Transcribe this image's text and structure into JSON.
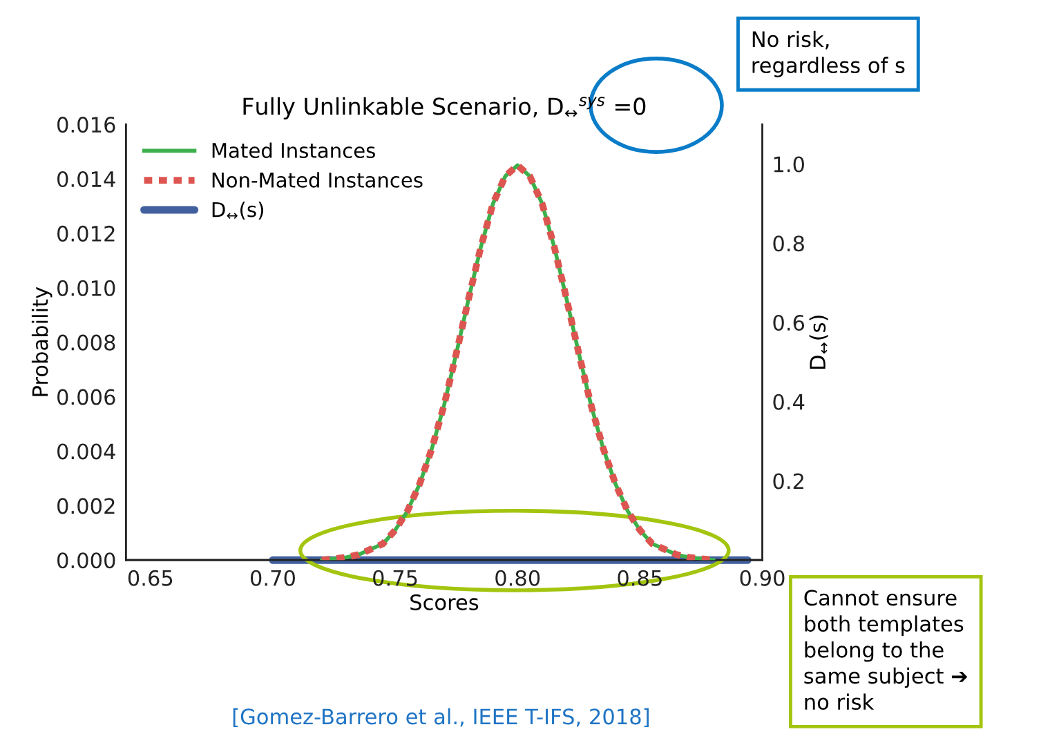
{
  "chart_data": {
    "type": "line",
    "title": "Fully Unlinkable Scenario, D$_{↔}$$^{sys}$ =0",
    "xlabel": "Scores",
    "ylabel": "Probability",
    "y2label": "D$_{↔}$(s)",
    "x": [
      0.72,
      0.73,
      0.735,
      0.74,
      0.745,
      0.75,
      0.755,
      0.76,
      0.765,
      0.77,
      0.775,
      0.78,
      0.785,
      0.79,
      0.795,
      0.8,
      0.805,
      0.81,
      0.815,
      0.82,
      0.825,
      0.83,
      0.835,
      0.84,
      0.845,
      0.85,
      0.855,
      0.86,
      0.865,
      0.87,
      0.88
    ],
    "series": [
      {
        "name": "Mated Instances",
        "color": "#3cb04a",
        "line_style": "solid",
        "values": [
          0,
          0.0001,
          0.0002,
          0.0004,
          0.0006,
          0.0011,
          0.0018,
          0.0028,
          0.0041,
          0.0057,
          0.0076,
          0.0096,
          0.0115,
          0.0131,
          0.0141,
          0.0145,
          0.0141,
          0.0131,
          0.0115,
          0.0096,
          0.0076,
          0.0057,
          0.0041,
          0.0028,
          0.0018,
          0.0011,
          0.0006,
          0.0004,
          0.0002,
          0.0001,
          0
        ]
      },
      {
        "name": "Non-Mated Instances",
        "color": "#dd5550",
        "line_style": "dotted",
        "values": [
          0,
          0.0001,
          0.0002,
          0.0004,
          0.0006,
          0.0011,
          0.0018,
          0.0028,
          0.0041,
          0.0057,
          0.0076,
          0.0096,
          0.0115,
          0.0131,
          0.0141,
          0.0145,
          0.0141,
          0.0131,
          0.0115,
          0.0096,
          0.0076,
          0.0057,
          0.0041,
          0.0028,
          0.0018,
          0.0011,
          0.0006,
          0.0004,
          0.0002,
          0.0001,
          0
        ]
      },
      {
        "name": "D$_{↔}$(s)",
        "color": "#41609d",
        "line_style": "solid",
        "axis": "y2",
        "x": [
          0.7,
          0.894
        ],
        "values": [
          0,
          0
        ]
      }
    ],
    "xlim": [
      0.64,
      0.9
    ],
    "xticks": [
      0.65,
      {
        "value": 0.7,
        "label": "0.70"
      },
      0.75,
      {
        "value": 0.8,
        "label": "0.80"
      },
      0.85,
      {
        "value": 0.9,
        "label": "0.90"
      }
    ],
    "ylim": [
      0,
      0.016
    ],
    "yticks": [
      {
        "value": 0,
        "label": "0.000"
      },
      {
        "value": 0.002,
        "label": "0.002"
      },
      {
        "value": 0.004,
        "label": "0.004"
      },
      {
        "value": 0.006,
        "label": "0.006"
      },
      {
        "value": 0.008,
        "label": "0.008"
      },
      {
        "value": 0.01,
        "label": "0.010"
      },
      {
        "value": 0.012,
        "label": "0.012"
      },
      {
        "value": 0.014,
        "label": "0.014"
      },
      {
        "value": 0.016,
        "label": "0.016"
      }
    ],
    "y2lim": [
      0,
      1.1
    ],
    "y2ticks": [
      0.2,
      0.4,
      0.6,
      0.8,
      {
        "value": 1.0,
        "label": "1.0"
      }
    ],
    "grid": false,
    "legend": "top left",
    "annotations": [
      "No risk,\nregardless of s",
      "Cannot ensure\nboth templates\nbelong to the\nsame subject ➔\nno risk",
      "[Gomez-Barrero et al., IEEE T-IFS, 2018]"
    ]
  }
}
